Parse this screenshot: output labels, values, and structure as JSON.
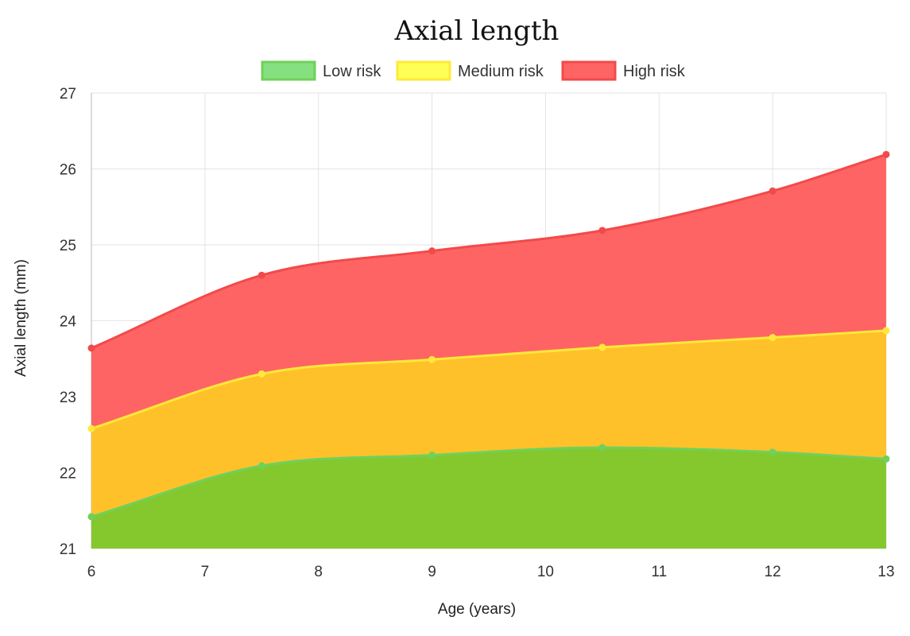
{
  "chart_data": {
    "type": "area",
    "title": "Axial length",
    "xlabel": "Age (years)",
    "ylabel": "Axial length (mm)",
    "xlim": [
      6,
      13
    ],
    "ylim": [
      21,
      27
    ],
    "x_ticks": [
      6,
      7,
      8,
      9,
      10,
      11,
      12,
      13
    ],
    "y_ticks": [
      21,
      22,
      23,
      24,
      25,
      26,
      27
    ],
    "grid": true,
    "legend_position": "top",
    "x": [
      6,
      7.5,
      9,
      10.5,
      12,
      13
    ],
    "series": [
      {
        "name": "Low risk",
        "values": [
          21.42,
          22.09,
          22.23,
          22.33,
          22.27,
          22.18
        ],
        "fill": "#84c82d",
        "line": "#6fd15a",
        "legend_fill": "#86e07f"
      },
      {
        "name": "Medium risk",
        "values": [
          22.58,
          23.3,
          23.49,
          23.65,
          23.78,
          23.87
        ],
        "fill": "#ffc12a",
        "line": "#ffe83a",
        "legend_fill": "#ffff55"
      },
      {
        "name": "High risk",
        "values": [
          23.64,
          24.6,
          24.92,
          25.19,
          25.71,
          26.19
        ],
        "fill": "#ff6464",
        "line": "#f24a4a",
        "legend_fill": "#ff6464"
      }
    ]
  }
}
